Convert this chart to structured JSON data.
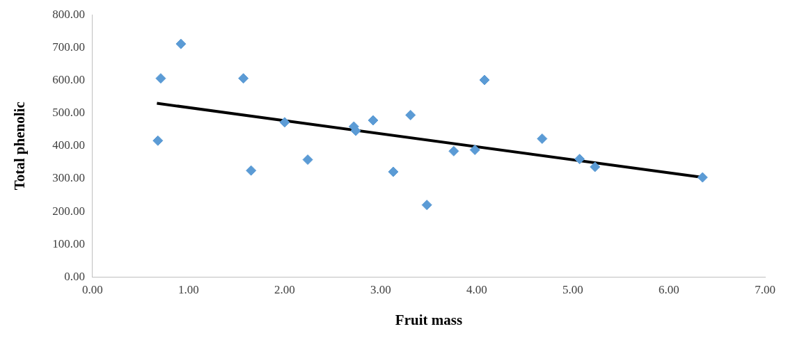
{
  "chart_data": {
    "type": "scatter",
    "xlabel": "Fruit mass",
    "ylabel": "Total phenolic",
    "xlim": [
      0,
      7
    ],
    "ylim": [
      0,
      800
    ],
    "xticks": [
      {
        "value": 0,
        "label": "0.00"
      },
      {
        "value": 1,
        "label": "1.00"
      },
      {
        "value": 2,
        "label": "2.00"
      },
      {
        "value": 3,
        "label": "3.00"
      },
      {
        "value": 4,
        "label": "4.00"
      },
      {
        "value": 5,
        "label": "5.00"
      },
      {
        "value": 6,
        "label": "6.00"
      },
      {
        "value": 7,
        "label": "7.00"
      }
    ],
    "yticks": [
      {
        "value": 0,
        "label": "0.00"
      },
      {
        "value": 100,
        "label": "100.00"
      },
      {
        "value": 200,
        "label": "200.00"
      },
      {
        "value": 300,
        "label": "300.00"
      },
      {
        "value": 400,
        "label": "400.00"
      },
      {
        "value": 500,
        "label": "500.00"
      },
      {
        "value": 600,
        "label": "600.00"
      },
      {
        "value": 700,
        "label": "700.00"
      },
      {
        "value": 800,
        "label": "800.00"
      }
    ],
    "grid": false,
    "legend": false,
    "series": [
      {
        "marker": "diamond",
        "color": "#5b9bd5",
        "x": [
          0.68,
          0.71,
          0.92,
          1.57,
          1.65,
          2.0,
          2.24,
          2.72,
          2.74,
          2.92,
          3.13,
          3.31,
          3.48,
          3.76,
          3.98,
          4.08,
          4.68,
          5.07,
          5.23,
          6.35
        ],
        "values": [
          416,
          606,
          711,
          606,
          325,
          472,
          358,
          459,
          446,
          478,
          321,
          494,
          220,
          384,
          388,
          601,
          422,
          360,
          336,
          304
        ]
      },
      {
        "type": "line",
        "marker": "none",
        "color": "#000000",
        "x": [
          0.67,
          6.35
        ],
        "values": [
          530,
          304
        ]
      }
    ]
  }
}
